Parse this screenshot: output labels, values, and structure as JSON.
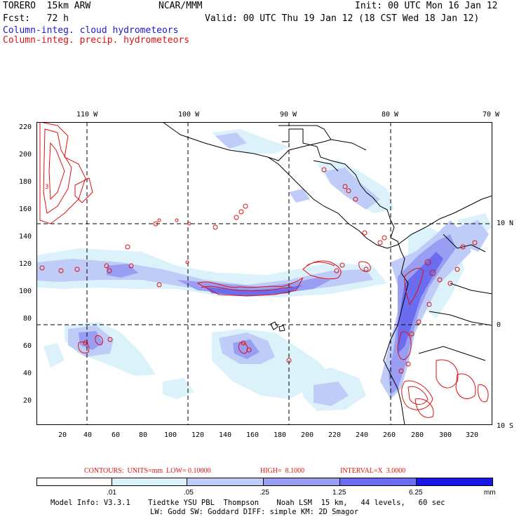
{
  "header": {
    "model": "TORERO  15km ARW",
    "org": "NCAR/MMM",
    "init": "Init: 00 UTC Mon 16 Jan 12",
    "fcst": "Fcst:   72 h",
    "valid": "Valid: 00 UTC Thu 19 Jan 12 (18 CST Wed 18 Jan 12)",
    "field1": "Column-integ. cloud hydrometeors",
    "field2": "Column-integ. precip. hydrometeors"
  },
  "map": {
    "top_lon_labels": [
      "110 W",
      "100 W",
      "90 W",
      "80 W",
      "70 W"
    ],
    "right_lat_labels": [
      "10 N",
      "0",
      "10 S"
    ],
    "left_ticks": [
      "220",
      "200",
      "180",
      "160",
      "140",
      "120",
      "100",
      "80",
      "60",
      "40",
      "20"
    ],
    "bottom_ticks": [
      "20",
      "40",
      "60",
      "80",
      "100",
      "120",
      "140",
      "160",
      "180",
      "200",
      "220",
      "240",
      "260",
      "280",
      "300",
      "320"
    ],
    "contour_label": "3"
  },
  "contours_line": {
    "units_label": "CONTOURS:  UNITS=mm  LOW= 0.10000",
    "high": "HIGH=  8.1000",
    "interval": "INTERVAL=X  3.0000"
  },
  "colorbar": {
    "colors": [
      "#ffffff",
      "#dcf2fb",
      "#bfccf7",
      "#9a9ef2",
      "#6b6cf0",
      "#3c3cee",
      "#1717e8"
    ],
    "labels": [
      ".01",
      ".05",
      ".25",
      "1.25",
      "6.25"
    ],
    "unit": "mm"
  },
  "footer": {
    "line1": "Model Info: V3.3.1    Tiedtke YSU PBL  Thompson    Noah LSM  15 km,   44 levels,   60 sec",
    "line2": "LW: Godd SW: Goddard DIFF: simple KM: 2D Smagor"
  }
}
